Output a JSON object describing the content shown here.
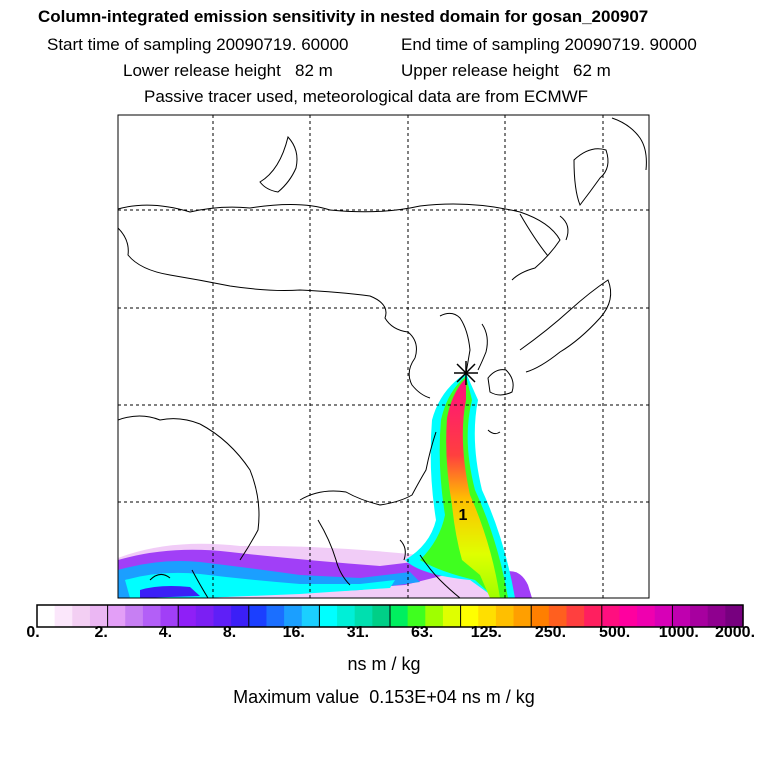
{
  "header": {
    "title": "Column-integrated emission sensitivity in nested domain for gosan_200907",
    "start_label": "Start time of sampling 20090719. 60000",
    "end_label": "End time of sampling 20090719. 90000",
    "lower_label": "Lower release height   82 m",
    "upper_label": "Upper release height   62 m",
    "tracer_label": "Passive tracer used, meteorological data are from ECMWF"
  },
  "colors": {
    "scale": [
      "#ffffff",
      "#fbe7fb",
      "#f3cff3",
      "#ebb7f3",
      "#e39ff7",
      "#c77ff3",
      "#b35ff7",
      "#a13ff7",
      "#8f1ff7",
      "#7b1ff3",
      "#5f1ff7",
      "#3b1ff7",
      "#1b3fff",
      "#1b6fff",
      "#1b9fff",
      "#1bcfff",
      "#00ffff",
      "#00efd7",
      "#00dfaf",
      "#00cf87",
      "#00ef5f",
      "#3fff1f",
      "#9fff00",
      "#dfff00",
      "#ffff00",
      "#ffdf00",
      "#ffbf00",
      "#ff9f00",
      "#ff7f00",
      "#ff5f1f",
      "#ff3f3f",
      "#ff1f5f",
      "#ff0f7f",
      "#ff009f",
      "#ef00af",
      "#d700b7",
      "#bf00af",
      "#a7009f",
      "#8f008f",
      "#77007f"
    ],
    "accent": "#000000"
  },
  "chart_data": {
    "type": "heatmap",
    "title": "Column-integrated emission sensitivity in nested domain for gosan_200907",
    "colorbar_ticks": [
      "0.",
      "2.",
      "4.",
      "8.",
      "16.",
      "31.",
      "63.",
      "125.",
      "250.",
      "500.",
      "1000.",
      "2000."
    ],
    "colorbar_unit": "ns m / kg",
    "max_value_text": "Maximum value  0.153E+04 ns m / kg",
    "release_marker": "*",
    "plume_label": "1",
    "grid": true
  }
}
